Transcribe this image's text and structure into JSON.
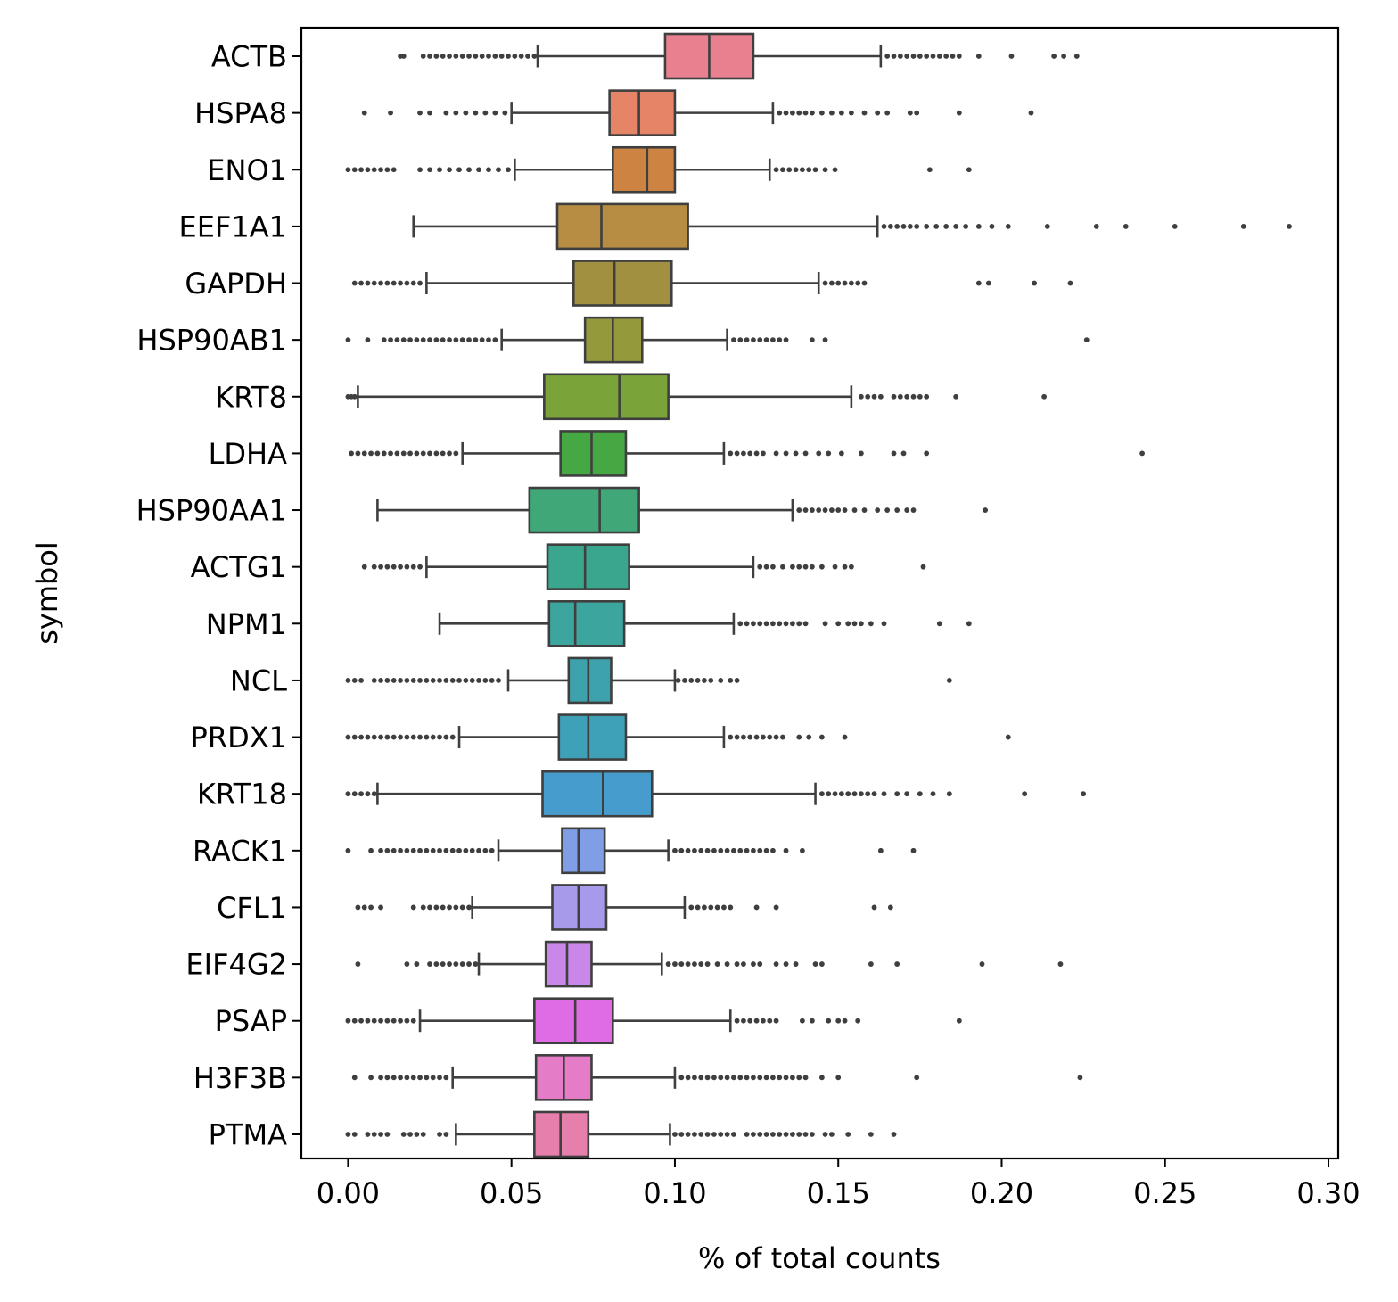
{
  "chart_data": {
    "type": "boxplot",
    "orientation": "horizontal",
    "xlabel": "% of total counts",
    "ylabel": "symbol",
    "xlim": [
      -0.0143,
      0.303
    ],
    "xticks": [
      {
        "value": 0.0,
        "label": "0.00"
      },
      {
        "value": 0.05,
        "label": "0.05"
      },
      {
        "value": 0.1,
        "label": "0.10"
      },
      {
        "value": 0.15,
        "label": "0.15"
      },
      {
        "value": 0.2,
        "label": "0.20"
      },
      {
        "value": 0.25,
        "label": "0.25"
      },
      {
        "value": 0.3,
        "label": "0.30"
      }
    ],
    "grid": false,
    "legend": "none",
    "categories": [
      {
        "symbol": "ACTB",
        "whisker_low": 0.058,
        "q1": 0.097,
        "median": 0.1105,
        "q3": 0.124,
        "whisker_high": 0.163,
        "color": "#e8808f",
        "outliers": [
          0.016,
          0.017,
          0.023,
          0.025,
          0.027,
          0.029,
          0.031,
          0.033,
          0.035,
          0.037,
          0.039,
          0.041,
          0.043,
          0.045,
          0.047,
          0.049,
          0.051,
          0.053,
          0.055,
          0.057,
          0.165,
          0.167,
          0.169,
          0.171,
          0.173,
          0.175,
          0.177,
          0.179,
          0.181,
          0.183,
          0.185,
          0.187,
          0.193,
          0.203,
          0.216,
          0.219,
          0.223
        ]
      },
      {
        "symbol": "HSPA8",
        "whisker_low": 0.05,
        "q1": 0.08,
        "median": 0.089,
        "q3": 0.1,
        "whisker_high": 0.13,
        "color": "#e58466",
        "outliers": [
          0.005,
          0.013,
          0.022,
          0.025,
          0.03,
          0.033,
          0.036,
          0.039,
          0.042,
          0.045,
          0.048,
          0.132,
          0.134,
          0.136,
          0.138,
          0.14,
          0.142,
          0.145,
          0.148,
          0.151,
          0.154,
          0.158,
          0.162,
          0.165,
          0.172,
          0.174,
          0.187,
          0.209
        ]
      },
      {
        "symbol": "ENO1",
        "whisker_low": 0.051,
        "q1": 0.081,
        "median": 0.0915,
        "q3": 0.1,
        "whisker_high": 0.129,
        "color": "#cd8341",
        "outliers": [
          0.0,
          0.002,
          0.004,
          0.006,
          0.008,
          0.01,
          0.012,
          0.014,
          0.022,
          0.025,
          0.028,
          0.031,
          0.034,
          0.037,
          0.04,
          0.043,
          0.046,
          0.049,
          0.131,
          0.133,
          0.135,
          0.137,
          0.139,
          0.141,
          0.143,
          0.146,
          0.149,
          0.178,
          0.19
        ]
      },
      {
        "symbol": "EEF1A1",
        "whisker_low": 0.02,
        "q1": 0.064,
        "median": 0.0775,
        "q3": 0.104,
        "whisker_high": 0.162,
        "color": "#b78d43",
        "outliers": [
          0.164,
          0.166,
          0.168,
          0.17,
          0.172,
          0.174,
          0.177,
          0.18,
          0.183,
          0.186,
          0.189,
          0.193,
          0.197,
          0.202,
          0.214,
          0.229,
          0.238,
          0.253,
          0.274,
          0.288
        ]
      },
      {
        "symbol": "GAPDH",
        "whisker_low": 0.024,
        "q1": 0.069,
        "median": 0.0815,
        "q3": 0.099,
        "whisker_high": 0.144,
        "color": "#a09040",
        "outliers": [
          0.002,
          0.004,
          0.006,
          0.008,
          0.01,
          0.012,
          0.014,
          0.016,
          0.018,
          0.02,
          0.022,
          0.146,
          0.148,
          0.15,
          0.152,
          0.154,
          0.156,
          0.158,
          0.193,
          0.196,
          0.21,
          0.221
        ]
      },
      {
        "symbol": "HSP90AB1",
        "whisker_low": 0.047,
        "q1": 0.0725,
        "median": 0.081,
        "q3": 0.09,
        "whisker_high": 0.116,
        "color": "#949a3c",
        "outliers": [
          0.0,
          0.006,
          0.011,
          0.013,
          0.015,
          0.017,
          0.019,
          0.021,
          0.023,
          0.025,
          0.027,
          0.029,
          0.031,
          0.033,
          0.035,
          0.037,
          0.039,
          0.041,
          0.043,
          0.045,
          0.118,
          0.12,
          0.122,
          0.124,
          0.126,
          0.128,
          0.13,
          0.132,
          0.134,
          0.142,
          0.146,
          0.226
        ]
      },
      {
        "symbol": "KRT8",
        "whisker_low": 0.003,
        "q1": 0.06,
        "median": 0.083,
        "q3": 0.098,
        "whisker_high": 0.154,
        "color": "#7aa43a",
        "outliers": [
          0.0,
          0.001,
          0.002,
          0.157,
          0.159,
          0.161,
          0.163,
          0.167,
          0.169,
          0.171,
          0.173,
          0.175,
          0.177,
          0.186,
          0.213
        ]
      },
      {
        "symbol": "LDHA",
        "whisker_low": 0.035,
        "q1": 0.065,
        "median": 0.0745,
        "q3": 0.085,
        "whisker_high": 0.115,
        "color": "#45a843",
        "outliers": [
          0.001,
          0.003,
          0.005,
          0.007,
          0.009,
          0.011,
          0.013,
          0.015,
          0.017,
          0.019,
          0.021,
          0.023,
          0.025,
          0.027,
          0.029,
          0.031,
          0.033,
          0.117,
          0.119,
          0.121,
          0.123,
          0.125,
          0.127,
          0.131,
          0.134,
          0.137,
          0.14,
          0.144,
          0.147,
          0.151,
          0.157,
          0.167,
          0.17,
          0.177,
          0.243
        ]
      },
      {
        "symbol": "HSP90AA1",
        "whisker_low": 0.009,
        "q1": 0.0555,
        "median": 0.077,
        "q3": 0.089,
        "whisker_high": 0.136,
        "color": "#40a779",
        "outliers": [
          0.138,
          0.14,
          0.142,
          0.144,
          0.146,
          0.148,
          0.15,
          0.152,
          0.155,
          0.158,
          0.162,
          0.165,
          0.168,
          0.171,
          0.173,
          0.195
        ]
      },
      {
        "symbol": "ACTG1",
        "whisker_low": 0.024,
        "q1": 0.061,
        "median": 0.0725,
        "q3": 0.086,
        "whisker_high": 0.124,
        "color": "#3ba68e",
        "outliers": [
          0.005,
          0.008,
          0.01,
          0.012,
          0.014,
          0.016,
          0.018,
          0.02,
          0.022,
          0.126,
          0.128,
          0.13,
          0.133,
          0.136,
          0.138,
          0.14,
          0.142,
          0.145,
          0.149,
          0.152,
          0.154,
          0.176
        ]
      },
      {
        "symbol": "NPM1",
        "whisker_low": 0.028,
        "q1": 0.0615,
        "median": 0.0695,
        "q3": 0.0845,
        "whisker_high": 0.118,
        "color": "#3ca59d",
        "outliers": [
          0.12,
          0.122,
          0.124,
          0.126,
          0.128,
          0.13,
          0.132,
          0.134,
          0.136,
          0.138,
          0.14,
          0.146,
          0.15,
          0.153,
          0.155,
          0.157,
          0.16,
          0.164,
          0.181,
          0.19
        ]
      },
      {
        "symbol": "NCL",
        "whisker_low": 0.049,
        "q1": 0.0675,
        "median": 0.0735,
        "q3": 0.0805,
        "whisker_high": 0.1,
        "color": "#3ea2ac",
        "outliers": [
          0.0,
          0.002,
          0.004,
          0.008,
          0.01,
          0.012,
          0.014,
          0.016,
          0.018,
          0.02,
          0.022,
          0.024,
          0.026,
          0.028,
          0.03,
          0.032,
          0.034,
          0.036,
          0.038,
          0.04,
          0.042,
          0.044,
          0.046,
          0.101,
          0.103,
          0.105,
          0.107,
          0.109,
          0.111,
          0.114,
          0.117,
          0.119,
          0.184
        ]
      },
      {
        "symbol": "PRDX1",
        "whisker_low": 0.034,
        "q1": 0.0645,
        "median": 0.0735,
        "q3": 0.085,
        "whisker_high": 0.115,
        "color": "#3fa1b8",
        "outliers": [
          0.0,
          0.002,
          0.004,
          0.006,
          0.008,
          0.01,
          0.012,
          0.014,
          0.016,
          0.018,
          0.02,
          0.022,
          0.024,
          0.026,
          0.028,
          0.03,
          0.032,
          0.117,
          0.119,
          0.121,
          0.123,
          0.125,
          0.127,
          0.129,
          0.131,
          0.133,
          0.138,
          0.141,
          0.145,
          0.152,
          0.202
        ]
      },
      {
        "symbol": "KRT18",
        "whisker_low": 0.009,
        "q1": 0.0595,
        "median": 0.078,
        "q3": 0.093,
        "whisker_high": 0.143,
        "color": "#469ccd",
        "outliers": [
          0.0,
          0.002,
          0.004,
          0.006,
          0.008,
          0.145,
          0.147,
          0.149,
          0.151,
          0.153,
          0.155,
          0.157,
          0.159,
          0.161,
          0.164,
          0.168,
          0.171,
          0.175,
          0.179,
          0.184,
          0.207,
          0.225
        ]
      },
      {
        "symbol": "RACK1",
        "whisker_low": 0.046,
        "q1": 0.0655,
        "median": 0.0705,
        "q3": 0.0785,
        "whisker_high": 0.098,
        "color": "#7f9ee5",
        "outliers": [
          0.0,
          0.007,
          0.01,
          0.012,
          0.014,
          0.016,
          0.018,
          0.02,
          0.022,
          0.024,
          0.026,
          0.028,
          0.03,
          0.032,
          0.034,
          0.036,
          0.038,
          0.04,
          0.042,
          0.044,
          0.1,
          0.102,
          0.104,
          0.106,
          0.108,
          0.11,
          0.112,
          0.114,
          0.116,
          0.118,
          0.12,
          0.122,
          0.124,
          0.126,
          0.128,
          0.13,
          0.134,
          0.139,
          0.163,
          0.173
        ]
      },
      {
        "symbol": "CFL1",
        "whisker_low": 0.038,
        "q1": 0.0625,
        "median": 0.0705,
        "q3": 0.079,
        "whisker_high": 0.103,
        "color": "#a89aea",
        "outliers": [
          0.003,
          0.005,
          0.007,
          0.01,
          0.02,
          0.023,
          0.025,
          0.027,
          0.029,
          0.031,
          0.033,
          0.035,
          0.037,
          0.105,
          0.107,
          0.109,
          0.111,
          0.113,
          0.115,
          0.117,
          0.125,
          0.131,
          0.161,
          0.166
        ]
      },
      {
        "symbol": "EIF4G2",
        "whisker_low": 0.04,
        "q1": 0.0605,
        "median": 0.067,
        "q3": 0.0745,
        "whisker_high": 0.096,
        "color": "#c887e9",
        "outliers": [
          0.003,
          0.018,
          0.021,
          0.025,
          0.027,
          0.029,
          0.031,
          0.033,
          0.035,
          0.037,
          0.039,
          0.098,
          0.1,
          0.102,
          0.104,
          0.106,
          0.108,
          0.11,
          0.113,
          0.116,
          0.119,
          0.121,
          0.124,
          0.126,
          0.131,
          0.134,
          0.137,
          0.143,
          0.145,
          0.16,
          0.168,
          0.194,
          0.218
        ]
      },
      {
        "symbol": "PSAP",
        "whisker_low": 0.022,
        "q1": 0.057,
        "median": 0.0695,
        "q3": 0.081,
        "whisker_high": 0.117,
        "color": "#e06ce5",
        "outliers": [
          0.0,
          0.002,
          0.004,
          0.006,
          0.008,
          0.01,
          0.012,
          0.014,
          0.016,
          0.018,
          0.02,
          0.119,
          0.121,
          0.123,
          0.125,
          0.127,
          0.129,
          0.131,
          0.139,
          0.142,
          0.147,
          0.15,
          0.152,
          0.156,
          0.187
        ]
      },
      {
        "symbol": "H3F3B",
        "whisker_low": 0.032,
        "q1": 0.0575,
        "median": 0.066,
        "q3": 0.0745,
        "whisker_high": 0.1,
        "color": "#e47cc8",
        "outliers": [
          0.002,
          0.007,
          0.01,
          0.012,
          0.014,
          0.016,
          0.018,
          0.02,
          0.022,
          0.024,
          0.026,
          0.028,
          0.03,
          0.102,
          0.104,
          0.106,
          0.108,
          0.11,
          0.112,
          0.114,
          0.116,
          0.118,
          0.12,
          0.122,
          0.124,
          0.126,
          0.128,
          0.13,
          0.132,
          0.134,
          0.136,
          0.138,
          0.14,
          0.145,
          0.15,
          0.174,
          0.224
        ]
      },
      {
        "symbol": "PTMA",
        "whisker_low": 0.033,
        "q1": 0.057,
        "median": 0.065,
        "q3": 0.0735,
        "whisker_high": 0.0985,
        "color": "#e77fad",
        "outliers": [
          0.0,
          0.002,
          0.006,
          0.008,
          0.01,
          0.012,
          0.017,
          0.019,
          0.021,
          0.023,
          0.028,
          0.03,
          0.1,
          0.102,
          0.104,
          0.106,
          0.108,
          0.11,
          0.112,
          0.114,
          0.116,
          0.118,
          0.122,
          0.124,
          0.126,
          0.128,
          0.13,
          0.132,
          0.134,
          0.136,
          0.138,
          0.14,
          0.142,
          0.146,
          0.148,
          0.153,
          0.16,
          0.167
        ]
      }
    ]
  }
}
